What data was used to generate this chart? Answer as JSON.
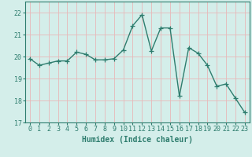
{
  "x": [
    0,
    1,
    2,
    3,
    4,
    5,
    6,
    7,
    8,
    9,
    10,
    11,
    12,
    13,
    14,
    15,
    16,
    17,
    18,
    19,
    20,
    21,
    22,
    23
  ],
  "y": [
    19.9,
    19.6,
    19.7,
    19.8,
    19.8,
    20.2,
    20.1,
    19.85,
    19.85,
    19.9,
    20.3,
    21.4,
    21.9,
    20.25,
    21.3,
    21.3,
    18.2,
    20.4,
    20.15,
    19.6,
    18.65,
    18.75,
    18.1,
    17.45
  ],
  "line_color": "#2e7d6e",
  "marker": "+",
  "marker_size": 4,
  "marker_color": "#2e7d6e",
  "bg_color": "#d4eeea",
  "grid_color": "#e8b8b8",
  "tick_color": "#2e7d6e",
  "xlabel": "Humidex (Indice chaleur)",
  "ylim": [
    17,
    22.5
  ],
  "yticks": [
    17,
    18,
    19,
    20,
    21,
    22
  ],
  "xlim": [
    -0.5,
    23.5
  ],
  "xticks": [
    0,
    1,
    2,
    3,
    4,
    5,
    6,
    7,
    8,
    9,
    10,
    11,
    12,
    13,
    14,
    15,
    16,
    17,
    18,
    19,
    20,
    21,
    22,
    23
  ],
  "xlabel_fontsize": 7,
  "tick_fontsize": 6,
  "line_width": 1.0
}
